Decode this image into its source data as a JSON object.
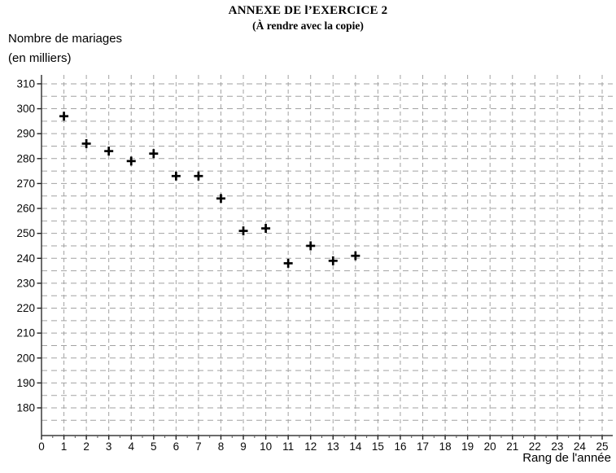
{
  "header": {
    "title_line1": "ANNEXE DE l’EXERCICE 2",
    "title_line2": "(À rendre avec la copie)"
  },
  "chart_data": {
    "type": "scatter",
    "title": "ANNEXE DE l’EXERCICE 2",
    "subtitle": "(À rendre avec la copie)",
    "ylabel_lines": [
      "Nombre de mariages",
      "(en milliers)"
    ],
    "xlabel": "Rang de l'année",
    "x": [
      1,
      2,
      3,
      4,
      5,
      6,
      7,
      8,
      9,
      10,
      11,
      12,
      13,
      14
    ],
    "y": [
      297,
      286,
      283,
      279,
      282,
      273,
      273,
      264,
      251,
      252,
      238,
      245,
      239,
      241
    ],
    "marker": "plus",
    "marker_color": "#000000",
    "xlim": [
      0,
      25
    ],
    "ylim": [
      169,
      313
    ],
    "x_tick_labels": [
      0,
      1,
      2,
      3,
      4,
      5,
      6,
      7,
      8,
      9,
      10,
      11,
      12,
      13,
      14,
      15,
      16,
      17,
      18,
      19,
      20,
      21,
      22,
      23,
      24,
      25
    ],
    "y_tick_labels": [
      180,
      190,
      200,
      210,
      220,
      230,
      240,
      250,
      260,
      270,
      280,
      290,
      300,
      310
    ],
    "y_grid_values_step": 5,
    "y_grid_min": 175,
    "y_grid_max": 310,
    "x_grid_step": 1,
    "grid_on": true,
    "grid_style": "dashed",
    "grid_color": "#a2a2a2",
    "axis_color": "#3c3c3c",
    "tick_label_color": "#0a0a0a",
    "legend": "none"
  }
}
